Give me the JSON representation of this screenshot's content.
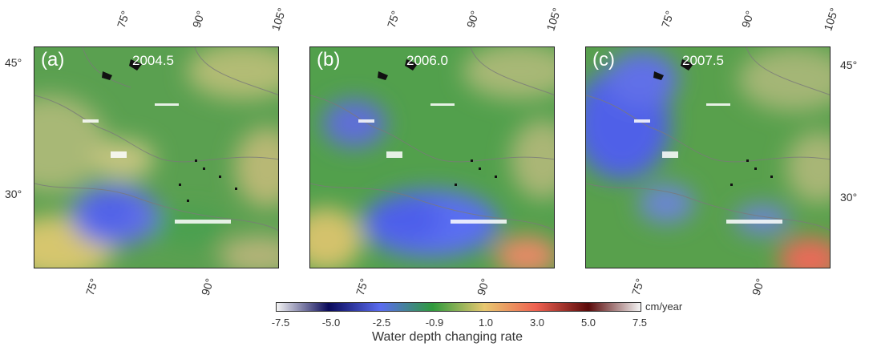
{
  "panels": [
    {
      "label": "(a)",
      "title": "2004.5"
    },
    {
      "label": "(b)",
      "title": "2006.0"
    },
    {
      "label": "(c)",
      "title": "2007.5"
    }
  ],
  "axes": {
    "top_ticks": [
      "75°",
      "90°",
      "105°"
    ],
    "bottom_ticks": [
      "75°",
      "90°"
    ],
    "left_ticks": [
      "45°",
      "30°"
    ],
    "right_ticks": [
      "45°",
      "30°"
    ]
  },
  "colorbar": {
    "labels": [
      "-7.5",
      "-5.0",
      "-2.5",
      "-0.9",
      "1.0",
      "3.0",
      "5.0",
      "7.5"
    ],
    "unit": "cm/year",
    "title": "Water depth changing rate",
    "colors": [
      "#f4f4f4",
      "#0a0a5a",
      "#5a6cf0",
      "#2f9a3c",
      "#e8c870",
      "#ee6050",
      "#5a0a0a",
      "#f4f4f4"
    ]
  }
}
